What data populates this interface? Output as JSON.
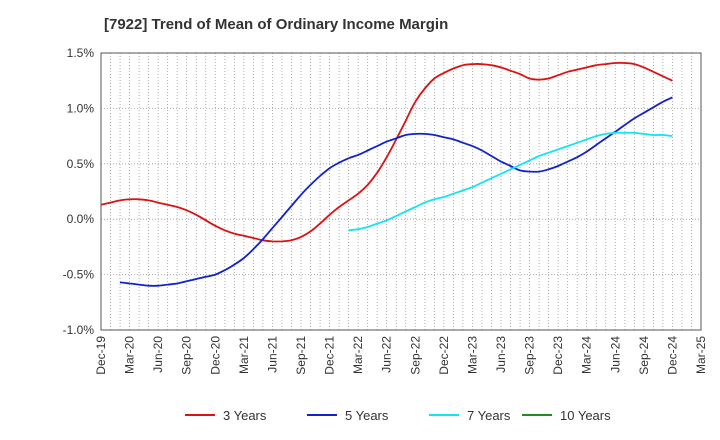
{
  "chart_data": {
    "type": "line",
    "title": "[7922]  Trend of Mean of Ordinary Income Margin",
    "xlabel": "",
    "ylabel": "",
    "x_ticks": [
      "Dec-19",
      "Mar-20",
      "Jun-20",
      "Sep-20",
      "Dec-20",
      "Mar-21",
      "Jun-21",
      "Sep-21",
      "Dec-21",
      "Mar-22",
      "Jun-22",
      "Sep-22",
      "Dec-22",
      "Mar-23",
      "Jun-23",
      "Sep-23",
      "Dec-23",
      "Mar-24",
      "Jun-24",
      "Sep-24",
      "Dec-24",
      "Mar-25"
    ],
    "y_ticks": [
      "1.5%",
      "1.0%",
      "0.5%",
      "0.0%",
      "-0.5%",
      "-1.0%"
    ],
    "y_tick_values": [
      1.5,
      1.0,
      0.5,
      0.0,
      -0.5,
      -1.0
    ],
    "ylim": [
      -1.0,
      1.5
    ],
    "y_unit": "%",
    "grid": true,
    "legend_position": "bottom",
    "series": [
      {
        "name": "3 Years",
        "color": "#dd1111",
        "points": [
          [
            "Dec-19",
            0.13
          ],
          [
            "Jan-20",
            0.15
          ],
          [
            "Feb-20",
            0.17
          ],
          [
            "Mar-20",
            0.18
          ],
          [
            "Apr-20",
            0.18
          ],
          [
            "May-20",
            0.17
          ],
          [
            "Jun-20",
            0.15
          ],
          [
            "Jul-20",
            0.13
          ],
          [
            "Aug-20",
            0.11
          ],
          [
            "Sep-20",
            0.08
          ],
          [
            "Oct-20",
            0.04
          ],
          [
            "Nov-20",
            -0.01
          ],
          [
            "Dec-20",
            -0.06
          ],
          [
            "Jan-21",
            -0.1
          ],
          [
            "Feb-21",
            -0.13
          ],
          [
            "Mar-21",
            -0.15
          ],
          [
            "Apr-21",
            -0.17
          ],
          [
            "May-21",
            -0.19
          ],
          [
            "Jun-21",
            -0.2
          ],
          [
            "Jul-21",
            -0.2
          ],
          [
            "Aug-21",
            -0.19
          ],
          [
            "Sep-21",
            -0.16
          ],
          [
            "Oct-21",
            -0.11
          ],
          [
            "Nov-21",
            -0.04
          ],
          [
            "Dec-21",
            0.04
          ],
          [
            "Jan-22",
            0.11
          ],
          [
            "Feb-22",
            0.17
          ],
          [
            "Mar-22",
            0.23
          ],
          [
            "Apr-22",
            0.31
          ],
          [
            "May-22",
            0.42
          ],
          [
            "Jun-22",
            0.56
          ],
          [
            "Jul-22",
            0.72
          ],
          [
            "Aug-22",
            0.89
          ],
          [
            "Sep-22",
            1.06
          ],
          [
            "Oct-22",
            1.18
          ],
          [
            "Nov-22",
            1.27
          ],
          [
            "Dec-22",
            1.32
          ],
          [
            "Jan-23",
            1.36
          ],
          [
            "Feb-23",
            1.39
          ],
          [
            "Mar-23",
            1.4
          ],
          [
            "Apr-23",
            1.4
          ],
          [
            "May-23",
            1.39
          ],
          [
            "Jun-23",
            1.37
          ],
          [
            "Jul-23",
            1.34
          ],
          [
            "Aug-23",
            1.31
          ],
          [
            "Sep-23",
            1.27
          ],
          [
            "Oct-23",
            1.26
          ],
          [
            "Nov-23",
            1.27
          ],
          [
            "Dec-23",
            1.3
          ],
          [
            "Jan-24",
            1.33
          ],
          [
            "Feb-24",
            1.35
          ],
          [
            "Mar-24",
            1.37
          ],
          [
            "Apr-24",
            1.39
          ],
          [
            "May-24",
            1.4
          ],
          [
            "Jun-24",
            1.41
          ],
          [
            "Jul-24",
            1.41
          ],
          [
            "Aug-24",
            1.4
          ],
          [
            "Sep-24",
            1.37
          ],
          [
            "Oct-24",
            1.33
          ],
          [
            "Nov-24",
            1.29
          ],
          [
            "Dec-24",
            1.25
          ]
        ]
      },
      {
        "name": "5 Years",
        "color": "#1122cc",
        "points": [
          [
            "Dec-19",
            null
          ],
          [
            "Jan-20",
            null
          ],
          [
            "Feb-20",
            -0.57
          ],
          [
            "Mar-20",
            -0.58
          ],
          [
            "Apr-20",
            -0.59
          ],
          [
            "May-20",
            -0.6
          ],
          [
            "Jun-20",
            -0.6
          ],
          [
            "Jul-20",
            -0.59
          ],
          [
            "Aug-20",
            -0.58
          ],
          [
            "Sep-20",
            -0.56
          ],
          [
            "Oct-20",
            -0.54
          ],
          [
            "Nov-20",
            -0.52
          ],
          [
            "Dec-20",
            -0.5
          ],
          [
            "Jan-21",
            -0.46
          ],
          [
            "Feb-21",
            -0.41
          ],
          [
            "Mar-21",
            -0.35
          ],
          [
            "Apr-21",
            -0.27
          ],
          [
            "May-21",
            -0.18
          ],
          [
            "Jun-21",
            -0.08
          ],
          [
            "Jul-21",
            0.02
          ],
          [
            "Aug-21",
            0.12
          ],
          [
            "Sep-21",
            0.22
          ],
          [
            "Oct-21",
            0.31
          ],
          [
            "Nov-21",
            0.39
          ],
          [
            "Dec-21",
            0.46
          ],
          [
            "Jan-22",
            0.51
          ],
          [
            "Feb-22",
            0.55
          ],
          [
            "Mar-22",
            0.58
          ],
          [
            "Apr-22",
            0.62
          ],
          [
            "May-22",
            0.66
          ],
          [
            "Jun-22",
            0.7
          ],
          [
            "Jul-22",
            0.73
          ],
          [
            "Aug-22",
            0.76
          ],
          [
            "Sep-22",
            0.77
          ],
          [
            "Oct-22",
            0.77
          ],
          [
            "Nov-22",
            0.76
          ],
          [
            "Dec-22",
            0.74
          ],
          [
            "Jan-23",
            0.72
          ],
          [
            "Feb-23",
            0.69
          ],
          [
            "Mar-23",
            0.66
          ],
          [
            "Apr-23",
            0.62
          ],
          [
            "May-23",
            0.57
          ],
          [
            "Jun-23",
            0.52
          ],
          [
            "Jul-23",
            0.48
          ],
          [
            "Aug-23",
            0.44
          ],
          [
            "Sep-23",
            0.43
          ],
          [
            "Oct-23",
            0.43
          ],
          [
            "Nov-23",
            0.45
          ],
          [
            "Dec-23",
            0.48
          ],
          [
            "Jan-24",
            0.52
          ],
          [
            "Feb-24",
            0.56
          ],
          [
            "Mar-24",
            0.61
          ],
          [
            "Apr-24",
            0.67
          ],
          [
            "May-24",
            0.73
          ],
          [
            "Jun-24",
            0.79
          ],
          [
            "Jul-24",
            0.85
          ],
          [
            "Aug-24",
            0.91
          ],
          [
            "Sep-24",
            0.96
          ],
          [
            "Oct-24",
            1.01
          ],
          [
            "Nov-24",
            1.06
          ],
          [
            "Dec-24",
            1.1
          ]
        ]
      },
      {
        "name": "7 Years",
        "color": "#11e5f0",
        "points": [
          [
            "Feb-22",
            -0.1
          ],
          [
            "Mar-22",
            -0.09
          ],
          [
            "Apr-22",
            -0.07
          ],
          [
            "May-22",
            -0.04
          ],
          [
            "Jun-22",
            -0.01
          ],
          [
            "Jul-22",
            0.03
          ],
          [
            "Aug-22",
            0.07
          ],
          [
            "Sep-22",
            0.11
          ],
          [
            "Oct-22",
            0.15
          ],
          [
            "Nov-22",
            0.18
          ],
          [
            "Dec-22",
            0.2
          ],
          [
            "Jan-23",
            0.23
          ],
          [
            "Feb-23",
            0.26
          ],
          [
            "Mar-23",
            0.29
          ],
          [
            "Apr-23",
            0.33
          ],
          [
            "May-23",
            0.37
          ],
          [
            "Jun-23",
            0.41
          ],
          [
            "Jul-23",
            0.45
          ],
          [
            "Aug-23",
            0.49
          ],
          [
            "Sep-23",
            0.53
          ],
          [
            "Oct-23",
            0.57
          ],
          [
            "Nov-23",
            0.6
          ],
          [
            "Dec-23",
            0.63
          ],
          [
            "Jan-24",
            0.66
          ],
          [
            "Feb-24",
            0.69
          ],
          [
            "Mar-24",
            0.72
          ],
          [
            "Apr-24",
            0.75
          ],
          [
            "May-24",
            0.77
          ],
          [
            "Jun-24",
            0.78
          ],
          [
            "Jul-24",
            0.78
          ],
          [
            "Aug-24",
            0.78
          ],
          [
            "Sep-24",
            0.77
          ],
          [
            "Oct-24",
            0.76
          ],
          [
            "Nov-24",
            0.76
          ],
          [
            "Dec-24",
            0.75
          ]
        ]
      },
      {
        "name": "10 Years",
        "color": "#228b22",
        "points": []
      }
    ]
  }
}
